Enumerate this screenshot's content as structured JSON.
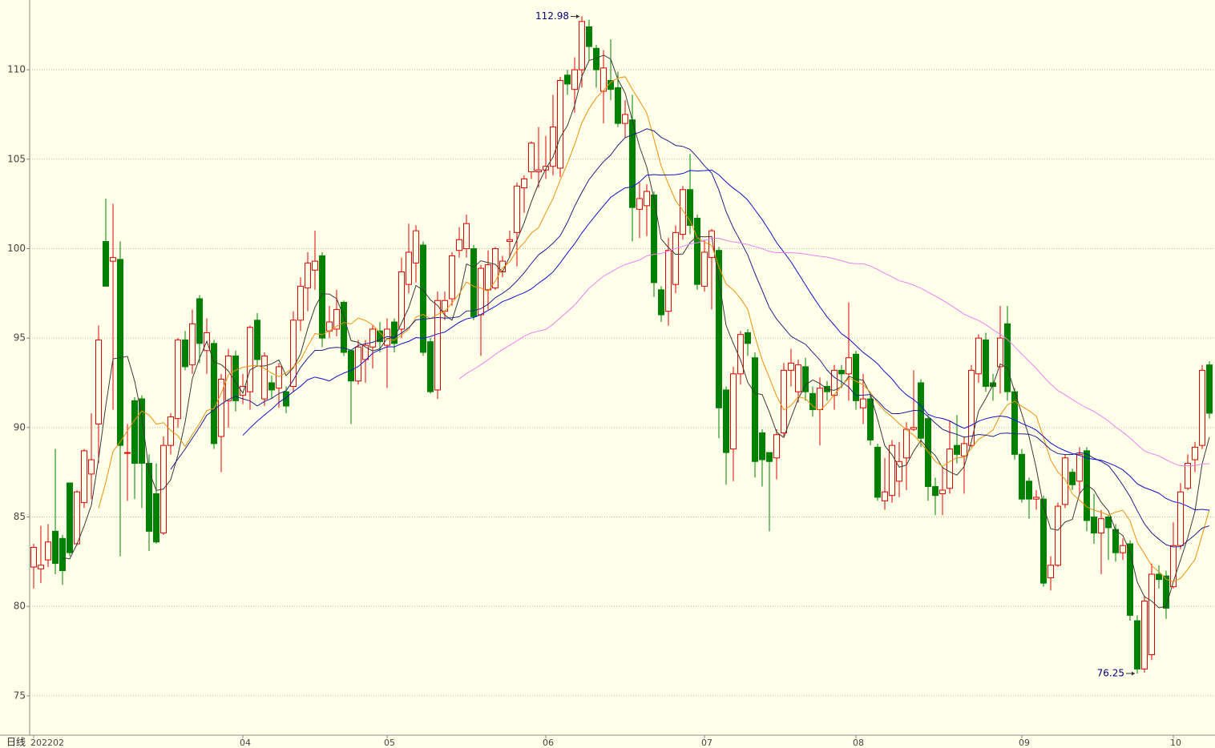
{
  "chart_data": {
    "type": "candlestick",
    "period_label": "日线",
    "categories": [
      "202202",
      null,
      null,
      null,
      null,
      null,
      null,
      null,
      null,
      null,
      null,
      null,
      null,
      null,
      null,
      null,
      null,
      null,
      null,
      null,
      null,
      null,
      null,
      null,
      null,
      null,
      null,
      null,
      null,
      "04",
      null,
      null,
      null,
      null,
      null,
      null,
      null,
      null,
      null,
      null,
      null,
      null,
      null,
      null,
      null,
      null,
      null,
      null,
      null,
      "05",
      null,
      null,
      null,
      null,
      null,
      null,
      null,
      null,
      null,
      null,
      null,
      null,
      null,
      null,
      null,
      null,
      null,
      null,
      null,
      null,
      null,
      "06",
      null,
      null,
      null,
      null,
      null,
      null,
      null,
      null,
      null,
      null,
      null,
      null,
      null,
      null,
      null,
      null,
      null,
      null,
      null,
      null,
      null,
      "07",
      null,
      null,
      null,
      null,
      null,
      null,
      null,
      null,
      null,
      null,
      null,
      null,
      null,
      null,
      null,
      null,
      null,
      null,
      null,
      null,
      "08",
      null,
      null,
      null,
      null,
      null,
      null,
      null,
      null,
      null,
      null,
      null,
      null,
      null,
      null,
      null,
      null,
      null,
      null,
      null,
      null,
      null,
      null,
      "09",
      null,
      null,
      null,
      null,
      null,
      null,
      null,
      null,
      null,
      null,
      null,
      null,
      null,
      null,
      null,
      null,
      null,
      null,
      null,
      null,
      "10",
      null,
      null,
      null,
      null,
      null
    ],
    "open": [
      82.2,
      82.1,
      82.6,
      84.2,
      83.8,
      86.9,
      83.5,
      85.8,
      87.4,
      90.2,
      100.4,
      99.3,
      99.4,
      88.6,
      91.5,
      91.6,
      88.0,
      86.3,
      84.1,
      89.0,
      90.5,
      94.9,
      93.5,
      97.2,
      94.3,
      94.7,
      89.5,
      91.5,
      94.0,
      91.8,
      92.0,
      96.0,
      91.6,
      92.5,
      92.2,
      92.0,
      92.3,
      96.0,
      97.8,
      98.8,
      99.6,
      95.4,
      95.5,
      97.0,
      94.3,
      92.6,
      93.8,
      94.5,
      95.4,
      94.6,
      95.9,
      95.5,
      98.0,
      99.2,
      100.2,
      94.8,
      92.1,
      96.5,
      97.2,
      99.9,
      100.0,
      100.0,
      96.3,
      97.7,
      97.8,
      98.7,
      100.4,
      100.9,
      103.4,
      104.3,
      104.3,
      104.4,
      104.6,
      104.5,
      109.7,
      108.9,
      110.0,
      112.4,
      111.2,
      108.8,
      109.4,
      109.0,
      107.0,
      107.2,
      102.2,
      102.4,
      103.0,
      97.7,
      96.5,
      98.0,
      100.8,
      103.3,
      101.7,
      97.9,
      99.5,
      99.9,
      92.1,
      88.8,
      93.0,
      95.3,
      93.9,
      89.7,
      88.6,
      88.3,
      89.7,
      93.2,
      92.0,
      93.4,
      91.9,
      91.0,
      92.3,
      91.8,
      93.2,
      93.0,
      94.1,
      91.1,
      91.6,
      88.9,
      85.9,
      86.2,
      87.0,
      88.3,
      89.9,
      92.5,
      90.5,
      86.7,
      86.3,
      86.6,
      89.0,
      88.4,
      89.0,
      93.0,
      94.9,
      92.5,
      93.4,
      95.8,
      92.0,
      88.5,
      87.0,
      86.0,
      86.0,
      81.6,
      82.3,
      85.7,
      87.5,
      87.0,
      88.7,
      85.0,
      84.1,
      85.0,
      84.3,
      83.0,
      83.5,
      79.2,
      76.5,
      77.3,
      81.8,
      81.7,
      81.1,
      83.4,
      86.6,
      88.2,
      89.0,
      93.5
    ],
    "high": [
      83.5,
      84.5,
      84.6,
      88.8,
      84.0,
      86.9,
      86.5,
      88.8,
      90.8,
      95.7,
      102.8,
      102.5,
      100.4,
      90.2,
      91.7,
      91.8,
      88.5,
      88.0,
      89.5,
      90.8,
      95.0,
      95.4,
      96.6,
      97.4,
      96.1,
      94.9,
      93.0,
      94.4,
      94.3,
      93.0,
      95.7,
      96.4,
      94.2,
      92.9,
      93.6,
      92.3,
      96.5,
      98.4,
      99.8,
      101.0,
      99.8,
      96.8,
      97.7,
      97.1,
      94.3,
      94.9,
      94.9,
      95.7,
      95.9,
      96.1,
      96.1,
      99.5,
      101.4,
      101.3,
      100.4,
      95.0,
      97.6,
      97.6,
      99.8,
      101.2,
      101.9,
      100.2,
      99.1,
      99.9,
      100.1,
      99.6,
      101.0,
      103.7,
      104.1,
      106.0,
      106.8,
      106.3,
      108.6,
      109.6,
      110.0,
      110.7,
      112.98,
      112.8,
      111.4,
      111.1,
      111.7,
      109.9,
      108.3,
      108.6,
      103.7,
      103.6,
      103.2,
      97.9,
      100.6,
      101.3,
      103.5,
      105.3,
      101.9,
      100.5,
      101.1,
      100.1,
      92.3,
      93.4,
      95.4,
      95.5,
      94.2,
      89.9,
      88.6,
      89.9,
      93.6,
      94.4,
      93.8,
      93.9,
      92.3,
      92.8,
      92.6,
      93.5,
      93.5,
      97.0,
      94.3,
      93.0,
      91.8,
      89.1,
      88.3,
      89.3,
      89.2,
      90.3,
      93.2,
      92.7,
      90.7,
      87.2,
      87.8,
      90.4,
      90.7,
      89.5,
      93.5,
      95.2,
      95.3,
      93.0,
      96.8,
      96.8,
      92.2,
      88.8,
      87.2,
      86.5,
      86.2,
      82.8,
      85.8,
      88.5,
      87.7,
      88.9,
      88.9,
      86.3,
      85.4,
      85.1,
      84.6,
      83.8,
      83.7,
      79.5,
      80.6,
      82.4,
      82.3,
      82.0,
      84.7,
      86.9,
      88.5,
      89.2,
      93.5,
      93.7
    ],
    "low": [
      81.0,
      81.3,
      82.2,
      81.8,
      81.2,
      82.8,
      83.4,
      85.5,
      86.0,
      88.0,
      97.9,
      91.0,
      82.8,
      85.9,
      86.0,
      85.5,
      83.1,
      83.5,
      84.0,
      88.5,
      90.0,
      93.2,
      93.0,
      93.6,
      93.0,
      88.8,
      87.5,
      90.0,
      90.9,
      91.3,
      91.0,
      93.5,
      91.2,
      91.6,
      91.1,
      90.8,
      92.0,
      95.4,
      96.5,
      97.7,
      94.5,
      95.0,
      95.1,
      94.0,
      90.2,
      92.4,
      92.5,
      93.3,
      94.2,
      92.2,
      94.2,
      95.0,
      97.5,
      98.1,
      94.0,
      91.9,
      91.6,
      96.0,
      96.8,
      99.5,
      99.5,
      96.0,
      94.0,
      96.6,
      97.7,
      98.4,
      99.5,
      99.0,
      102.0,
      103.9,
      103.4,
      103.9,
      104.1,
      104.0,
      108.6,
      107.6,
      109.0,
      110.5,
      109.0,
      107.0,
      108.3,
      106.8,
      106.2,
      100.4,
      100.6,
      100.7,
      97.3,
      95.9,
      95.7,
      97.5,
      100.5,
      100.8,
      97.7,
      97.6,
      96.6,
      89.4,
      86.8,
      87.0,
      92.4,
      94.0,
      87.2,
      86.7,
      84.2,
      87.1,
      89.5,
      92.3,
      91.4,
      91.5,
      90.6,
      89.0,
      91.5,
      91.0,
      92.2,
      91.5,
      91.0,
      90.2,
      89.0,
      85.9,
      85.4,
      85.8,
      86.1,
      86.5,
      89.8,
      88.9,
      85.9,
      85.1,
      85.1,
      86.3,
      88.0,
      86.3,
      88.9,
      92.5,
      92.0,
      91.5,
      91.9,
      91.5,
      88.2,
      85.8,
      84.9,
      85.4,
      81.1,
      80.9,
      82.2,
      85.5,
      86.5,
      86.3,
      84.2,
      83.5,
      81.8,
      82.6,
      82.5,
      82.6,
      79.2,
      76.25,
      76.3,
      77.0,
      81.0,
      79.3,
      81.0,
      83.2,
      86.5,
      87.5,
      88.8,
      90.5
    ],
    "close": [
      83.3,
      82.3,
      83.6,
      82.4,
      82.0,
      83.0,
      86.4,
      88.7,
      88.2,
      94.9,
      97.9,
      99.5,
      89.0,
      88.6,
      88.0,
      88.0,
      84.2,
      83.6,
      89.0,
      90.6,
      94.9,
      93.4,
      95.8,
      94.7,
      95.3,
      89.1,
      92.7,
      94.0,
      91.5,
      92.3,
      95.6,
      93.8,
      94.0,
      92.1,
      93.4,
      91.2,
      96.0,
      97.9,
      99.2,
      99.3,
      95.0,
      95.9,
      96.6,
      94.2,
      92.6,
      94.5,
      94.6,
      95.5,
      94.8,
      95.5,
      94.7,
      98.7,
      99.8,
      101.0,
      94.2,
      92.0,
      97.1,
      97.1,
      99.6,
      100.5,
      101.4,
      96.2,
      98.9,
      99.1,
      100.0,
      99.3,
      100.5,
      103.5,
      103.9,
      105.9,
      104.4,
      104.6,
      106.8,
      109.4,
      109.2,
      110.0,
      112.7,
      111.3,
      110.0,
      110.1,
      108.9,
      107.0,
      107.5,
      102.3,
      102.8,
      103.2,
      98.1,
      96.3,
      99.9,
      100.9,
      103.3,
      101.3,
      98.0,
      99.8,
      101.0,
      91.1,
      88.6,
      93.0,
      95.2,
      94.7,
      88.1,
      88.2,
      88.1,
      89.6,
      93.2,
      93.6,
      93.5,
      92.0,
      91.0,
      92.2,
      92.0,
      93.2,
      93.0,
      93.9,
      91.5,
      91.6,
      89.3,
      86.1,
      86.4,
      89.0,
      88.1,
      89.9,
      90.0,
      89.4,
      86.7,
      86.2,
      86.5,
      88.8,
      88.5,
      89.1,
      93.2,
      95.0,
      92.3,
      92.3,
      95.0,
      92.0,
      88.5,
      86.0,
      86.0,
      86.1,
      81.3,
      82.3,
      85.6,
      88.3,
      86.8,
      88.5,
      84.8,
      84.1,
      84.9,
      84.4,
      83.0,
      83.4,
      79.5,
      76.5,
      80.3,
      81.8,
      81.5,
      79.9,
      83.4,
      86.4,
      88.0,
      88.9,
      93.2,
      90.8
    ],
    "max_marker": 112.98,
    "min_marker": 76.25,
    "up_color": "#e00000",
    "down_color": "#008000",
    "moving_averages": [
      {
        "period": 5,
        "color": "#3a3a3a"
      },
      {
        "period": 10,
        "color": "#f0900a"
      },
      {
        "period": 20,
        "color": "#20208a"
      },
      {
        "period": 30,
        "color": "#1010d0"
      },
      {
        "period": 60,
        "color": "#ee80ee"
      }
    ],
    "ylim": [
      72.8,
      113.9
    ],
    "yticks": [
      75,
      80,
      85,
      90,
      95,
      100,
      105,
      110
    ],
    "grid": true
  }
}
